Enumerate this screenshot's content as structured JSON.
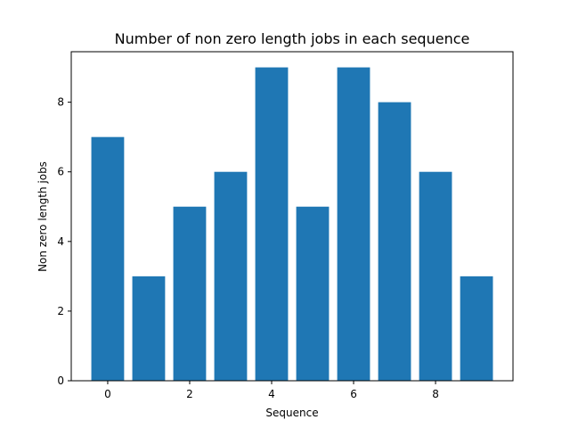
{
  "chart_data": {
    "type": "bar",
    "title": "Number of non zero length jobs in each sequence",
    "xlabel": "Sequence",
    "ylabel": "Non zero length jobs",
    "categories": [
      0,
      1,
      2,
      3,
      4,
      5,
      6,
      7,
      8,
      9
    ],
    "values": [
      7,
      3,
      5,
      6,
      9,
      5,
      9,
      8,
      6,
      3
    ],
    "xlim": [
      -0.89,
      9.89
    ],
    "ylim": [
      0,
      9.45
    ],
    "xticks": [
      0,
      2,
      4,
      6,
      8
    ],
    "yticks": [
      0,
      2,
      4,
      6,
      8
    ],
    "bar_color": "#1f77b4",
    "grid": false,
    "legend": "none"
  }
}
